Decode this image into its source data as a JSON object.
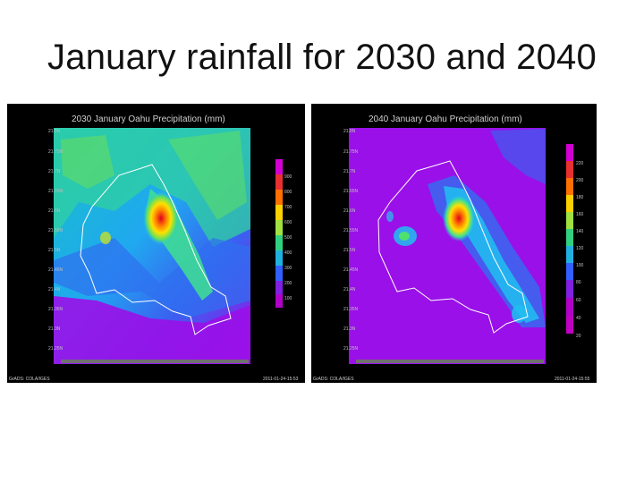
{
  "slide": {
    "title": "January rainfall for 2030 and 2040"
  },
  "maps": [
    {
      "title": "2030 January Oahu   Precipitation (mm)",
      "footer_left": "GrADS: COLA/IGES",
      "footer_right": "2011-01-24-15:53",
      "colorbar_labels": [
        "900",
        "800",
        "700",
        "600",
        "500",
        "400",
        "300",
        "200",
        "100"
      ],
      "colorbar_colors": [
        "#d000d0",
        "#e83030",
        "#ff7000",
        "#ffd000",
        "#a0e040",
        "#30d080",
        "#20b0e0",
        "#3060ff",
        "#8020e0",
        "#b000c8"
      ]
    },
    {
      "title": "2040 January Oahu   Precipitation (mm)",
      "footer_left": "GrADS: COLA/IGES",
      "footer_right": "2011-01-24-15:55",
      "colorbar_labels": [
        "220",
        "200",
        "180",
        "160",
        "140",
        "120",
        "100",
        "80",
        "60",
        "40",
        "20"
      ],
      "colorbar_colors": [
        "#d000d0",
        "#e83030",
        "#ff7000",
        "#ffd000",
        "#a0e040",
        "#30d080",
        "#20b0e0",
        "#3060ff",
        "#8020e0",
        "#b000c8",
        "#c000c0"
      ]
    }
  ],
  "colors": {
    "rain_low": "#9a10e8",
    "rain_mid": "#20c0f0",
    "rain_high": "#e02020"
  }
}
